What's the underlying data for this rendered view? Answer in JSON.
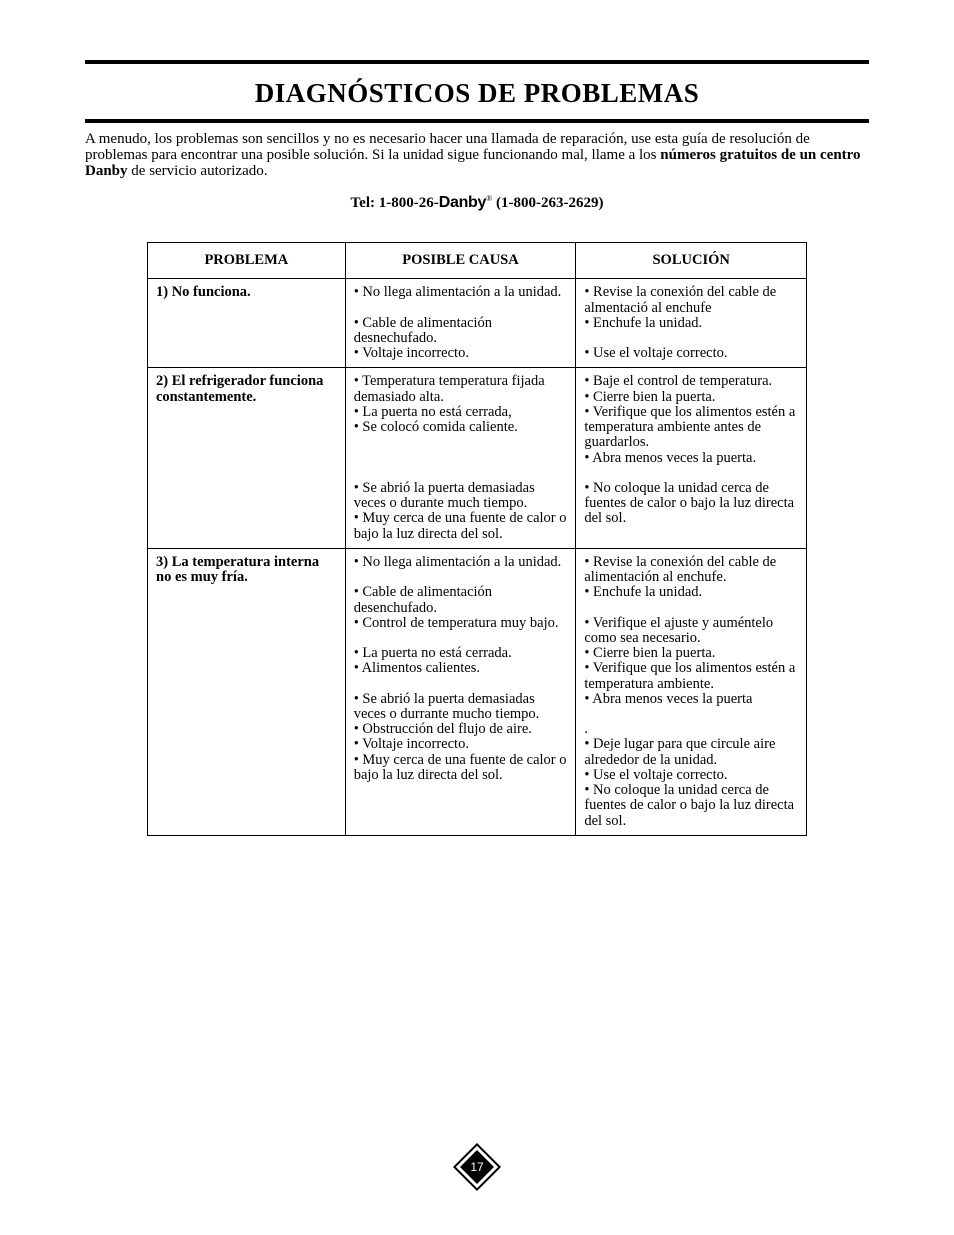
{
  "title": "DIAGNÓSTICOS DE PROBLEMAS",
  "intro": {
    "line1": "A menudo, los problemas son sencillos y no es necesario hacer una llamada de reparación, use esta guía de resolución de problemas para encontrar una posible solución.  Si la unidad sigue funcionando mal, llame a los ",
    "bold": "números gratuitos de un centro Danby",
    "line2": " de servicio autorizado."
  },
  "tel": {
    "prefix": "Tel: 1-800-26-",
    "brand": "Danby",
    "suffix": " (1-800-263-2629)"
  },
  "table": {
    "headers": [
      "PROBLEMA",
      "POSIBLE CAUSA",
      "SOLUCIÓN"
    ],
    "rows": [
      {
        "problem": "1) No funciona.",
        "cause": "• No llega alimentación a la unidad.\n\n• Cable de alimentación desnechufado.\n• Voltaje incorrecto.",
        "solution": "• Revise la conexión del cable de almentació al enchufe\n• Enchufe la unidad.\n\n• Use el voltaje correcto."
      },
      {
        "problem": "2) El refrigerador funciona constantemente.",
        "cause": "• Temperatura temperatura fijada demasiado alta.\n• La puerta no está cerrada,\n• Se colocó comida caliente.\n\n\n\n• Se abrió la puerta demasiadas veces o durante much tiempo.\n• Muy cerca de una fuente de calor o bajo la luz directa del sol.",
        "solution": "• Baje el control de temperatura.\n• Cierre bien la puerta.\n• Verifique que los alimentos estén a temperatura ambiente antes de guardarlos.\n• Abra menos veces la puerta.\n\n• No coloque la unidad cerca de fuentes de calor o bajo la luz directa del sol."
      },
      {
        "problem": "3) La temperatura interna no es muy fría.",
        "cause": "• No llega alimentación a la unidad.\n\n• Cable de alimentación desenchufado.\n• Control de temperatura muy bajo.\n\n• La puerta no está cerrada.\n• Alimentos calientes.\n\n• Se abrió la puerta demasiadas veces o durrante mucho tiempo.\n• Obstrucción del flujo de aire.\n• Voltaje incorrecto.\n• Muy cerca de una fuente de calor o bajo la luz directa del sol.",
        "solution": "• Revise la conexión del cable de alimentación al enchufe.\n• Enchufe la unidad.\n\n• Verifique el ajuste y auméntelo como sea necesario.\n• Cierre bien la puerta.\n• Verifique que los alimentos estén a temperatura ambiente.\n• Abra menos veces la puerta\n\n.\n• Deje lugar para que circule aire alrededor de la unidad.\n• Use el voltaje correcto.\n• No coloque la unidad cerca de fuentes de calor o bajo la luz directa del sol."
      }
    ]
  },
  "page_number": "17"
}
